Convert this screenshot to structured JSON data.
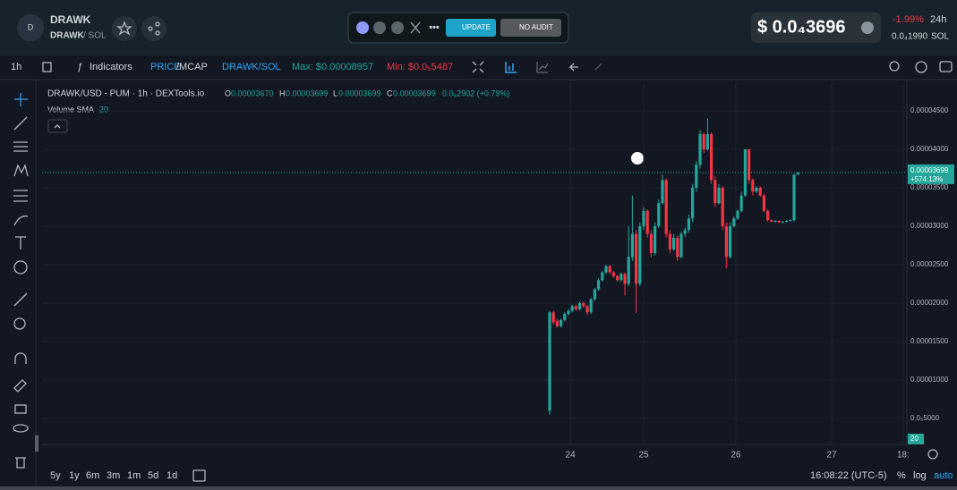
{
  "header": {
    "avatar": "D",
    "token": "DRAWK",
    "pair": "DRAWK",
    "quote": "/ SOL",
    "update": "UPDATE",
    "no_audit": "NO AUDIT",
    "price": "$ 0.0₄3696",
    "change": "-1.99%",
    "period": "24h",
    "sol_price": "0.0₄1990",
    "sol": "SOL"
  },
  "toolbar": {
    "interval": "1h",
    "indicators": "Indicators",
    "price": "PRICE",
    "mcap": "/MCAP",
    "pair": "DRAWK/SOL",
    "max": "Max: $0.00008957",
    "min": "Min: $0.0₅5487"
  },
  "legend": {
    "title": "DRAWK/USD - PUM · 1h · DEXTools.io",
    "o": "O",
    "o_value": "0.00003670",
    "h": "H",
    "h_value": "0.00003699",
    "l": "L",
    "l_value": "0.00003699",
    "c": "C",
    "c_value": "0.00003699",
    "change": "0.0₆2902 (+0.79%)",
    "volume": "Volume SMA",
    "volume_value": "20"
  },
  "chart_data": {
    "type": "candlestick",
    "categories": [
      null,
      null,
      null,
      null,
      null,
      null,
      null,
      null,
      null,
      null,
      null,
      null,
      null,
      null,
      null,
      null,
      null,
      null,
      null,
      null,
      null,
      null,
      null,
      null,
      null,
      null,
      null,
      null,
      null,
      null,
      null,
      null,
      null,
      null,
      null,
      null,
      null,
      null,
      null,
      null,
      null,
      null,
      null,
      null,
      null,
      null,
      null,
      null,
      null,
      null,
      null,
      null,
      null,
      null,
      null,
      null,
      null,
      null,
      null,
      null,
      null,
      null,
      null,
      null,
      null,
      null,
      null
    ],
    "open": [
      6e-06,
      1.88e-05,
      1.77e-05,
      1.7e-05,
      1.78e-05,
      1.86e-05,
      1.9e-05,
      1.96e-05,
      1.92e-05,
      2e-05,
      1.96e-05,
      1.88e-05,
      2.05e-05,
      2.18e-05,
      2.3e-05,
      2.4e-05,
      2.48e-05,
      2.4e-05,
      2.35e-05,
      2.3e-05,
      2.38e-05,
      2.25e-05,
      2.6e-05,
      2.9e-05,
      2.25e-05,
      3e-05,
      3.2e-05,
      2.9e-05,
      2.65e-05,
      3e-05,
      3.3e-05,
      3.6e-05,
      2.9e-05,
      2.7e-05,
      2.85e-05,
      2.6e-05,
      2.9e-05,
      2.95e-05,
      3.1e-05,
      3.5e-05,
      3.8e-05,
      4.2e-05,
      4e-05,
      4.2e-05,
      3.6e-05,
      3.3e-05,
      3.5e-05,
      3e-05,
      2.6e-05,
      3e-05,
      3.1e-05,
      3.2e-05,
      3.4e-05,
      4e-05,
      3.6e-05,
      3.45e-05,
      3.5e-05,
      3.4e-05,
      3.2e-05,
      3.08e-05,
      3.06e-05,
      3.07e-05,
      3.05e-05,
      3.06e-05,
      3.07e-05,
      3.08e-05,
      3.67e-05
    ],
    "high": [
      1.9e-05,
      1.9e-05,
      1.8e-05,
      1.8e-05,
      1.88e-05,
      1.92e-05,
      1.98e-05,
      1.98e-05,
      2.02e-05,
      2.02e-05,
      1.98e-05,
      2.07e-05,
      2.2e-05,
      2.32e-05,
      2.42e-05,
      2.5e-05,
      2.5e-05,
      2.42e-05,
      2.37e-05,
      2.4e-05,
      2.4e-05,
      3e-05,
      3.4e-05,
      2.95e-05,
      3.05e-05,
      3.25e-05,
      3.22e-05,
      2.95e-05,
      3.05e-05,
      3.35e-05,
      3.67e-05,
      3.62e-05,
      2.95e-05,
      2.9e-05,
      2.88e-05,
      2.93e-05,
      2.98e-05,
      3.15e-05,
      3.55e-05,
      3.85e-05,
      4.25e-05,
      4.22e-05,
      4.4e-05,
      4.22e-05,
      3.65e-05,
      3.55e-05,
      3.52e-05,
      3.05e-05,
      3.05e-05,
      3.13e-05,
      3.22e-05,
      3.45e-05,
      4e-05,
      4e-05,
      3.62e-05,
      3.52e-05,
      3.52e-05,
      3.42e-05,
      3.22e-05,
      3.09e-05,
      3.08e-05,
      3.08e-05,
      3.07e-05,
      3.08e-05,
      3.09e-05,
      3.68e-05,
      3.699e-05
    ],
    "low": [
      5.5e-06,
      1.72e-05,
      1.68e-05,
      1.68e-05,
      1.76e-05,
      1.84e-05,
      1.88e-05,
      1.9e-05,
      1.9e-05,
      1.94e-05,
      1.85e-05,
      1.86e-05,
      2.03e-05,
      2.16e-05,
      2.28e-05,
      2.38e-05,
      2.38e-05,
      2.33e-05,
      2.28e-05,
      2.28e-05,
      2.1e-05,
      2.22e-05,
      2.55e-05,
      1.87e-05,
      2.22e-05,
      2.95e-05,
      2.85e-05,
      2.6e-05,
      2.62e-05,
      2.98e-05,
      3.28e-05,
      2.85e-05,
      2.65e-05,
      2.68e-05,
      2.55e-05,
      2.58e-05,
      2.86e-05,
      2.92e-05,
      3.05e-05,
      3.45e-05,
      3.75e-05,
      3.95e-05,
      3.98e-05,
      3.55e-05,
      3.25e-05,
      3.28e-05,
      2.95e-05,
      2.45e-05,
      2.58e-05,
      2.98e-05,
      3.08e-05,
      3.18e-05,
      3.38e-05,
      3.55e-05,
      3.4e-05,
      3.43e-05,
      3.38e-05,
      3.18e-05,
      3.06e-05,
      3.05e-05,
      3.05e-05,
      3.04e-05,
      3.04e-05,
      3.05e-05,
      3.06e-05,
      3.06e-05,
      3.699e-05
    ],
    "close": [
      1.88e-05,
      1.75e-05,
      1.7e-05,
      1.78e-05,
      1.86e-05,
      1.9e-05,
      1.96e-05,
      1.92e-05,
      2e-05,
      1.96e-05,
      1.88e-05,
      2.05e-05,
      2.18e-05,
      2.3e-05,
      2.4e-05,
      2.48e-05,
      2.4e-05,
      2.35e-05,
      2.3e-05,
      2.38e-05,
      2.25e-05,
      2.6e-05,
      2.9e-05,
      2.25e-05,
      3e-05,
      3.2e-05,
      2.9e-05,
      2.65e-05,
      3e-05,
      3.3e-05,
      3.6e-05,
      2.9e-05,
      2.7e-05,
      2.85e-05,
      2.6e-05,
      2.9e-05,
      2.95e-05,
      3.1e-05,
      3.5e-05,
      3.8e-05,
      4.2e-05,
      4e-05,
      4.2e-05,
      3.6e-05,
      3.3e-05,
      3.5e-05,
      3e-05,
      2.6e-05,
      3e-05,
      3.1e-05,
      3.2e-05,
      3.4e-05,
      4e-05,
      3.6e-05,
      3.45e-05,
      3.5e-05,
      3.4e-05,
      3.2e-05,
      3.08e-05,
      3.06e-05,
      3.07e-05,
      3.05e-05,
      3.06e-05,
      3.07e-05,
      3.08e-05,
      3.67e-05,
      3.699e-05
    ],
    "up_color": "#26a69a",
    "down_color": "#f23645",
    "ylim": [
      1.63e-06,
      4.872e-05
    ],
    "yticks": [
      {
        "value": 5e-06,
        "label": "0.0₅5000"
      },
      {
        "value": 1e-05,
        "label": "0.00001000"
      },
      {
        "value": 1.5e-05,
        "label": "0.00001500"
      },
      {
        "value": 2e-05,
        "label": "0.00002000"
      },
      {
        "value": 2.5e-05,
        "label": "0.00002500"
      },
      {
        "value": 3e-05,
        "label": "0.00003000"
      },
      {
        "value": 3.5e-05,
        "label": "0.00003500"
      },
      {
        "value": 4e-05,
        "label": "0.00004000"
      },
      {
        "value": 4.5e-05,
        "label": "0.00004500"
      }
    ],
    "xlim": [
      -135,
      95
    ],
    "xticks": [
      {
        "value": 5.5,
        "label": "24"
      },
      {
        "value": 25,
        "label": "25"
      },
      {
        "value": 49.5,
        "label": "26"
      },
      {
        "value": 75,
        "label": "27"
      },
      {
        "value": 94,
        "label": "18:"
      }
    ],
    "grid": true,
    "price_tag": {
      "price": "0.00003699",
      "change": "+574.13%"
    },
    "volume_tag": "20"
  },
  "footer": {
    "ranges": [
      "5y",
      "1y",
      "6m",
      "3m",
      "1m",
      "5d",
      "1d"
    ],
    "time": "16:08:22 (UTC-5)",
    "percent": "%",
    "log": "log",
    "auto": "auto"
  }
}
